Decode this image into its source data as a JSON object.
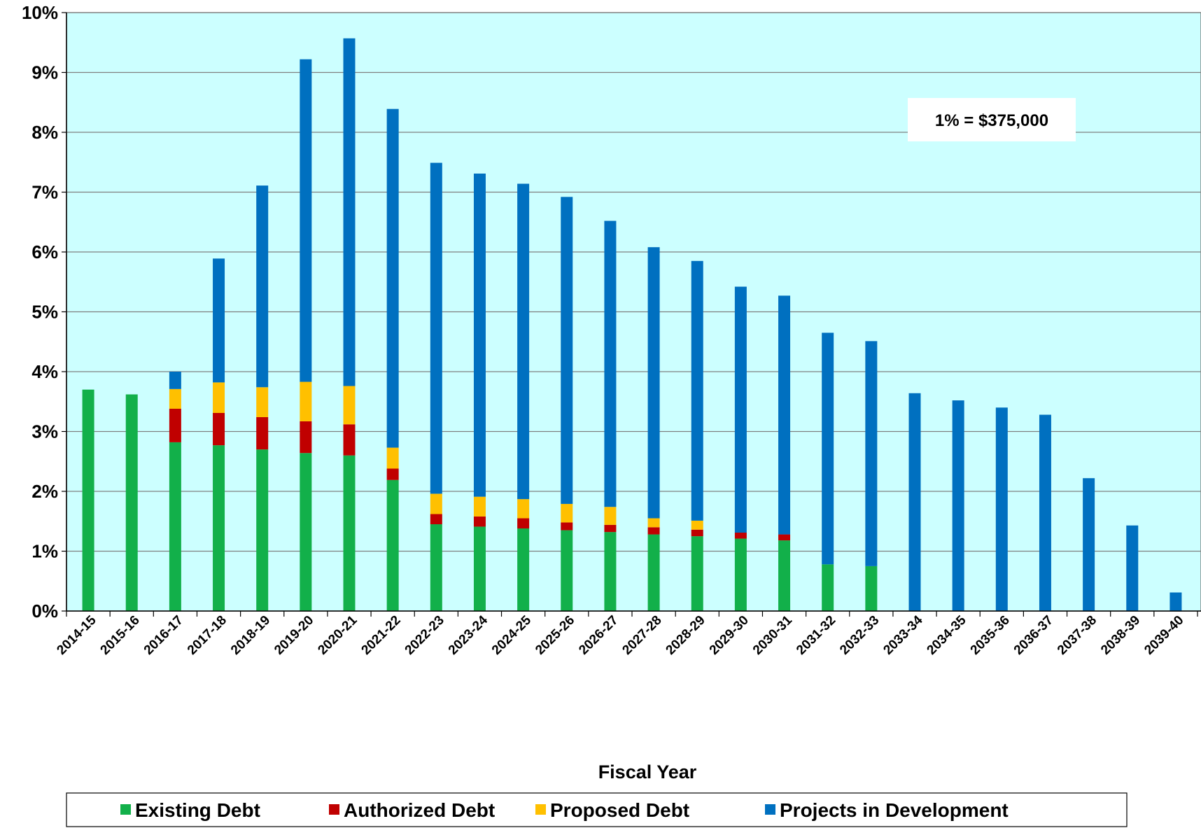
{
  "chart_data": {
    "type": "bar",
    "stacked": true,
    "title": "",
    "xlabel": "Fiscal Year",
    "ylabel": "",
    "ylim": [
      0,
      10
    ],
    "y_ticks": [
      "0%",
      "1%",
      "2%",
      "3%",
      "4%",
      "5%",
      "6%",
      "7%",
      "8%",
      "9%",
      "10%"
    ],
    "grid": true,
    "legend_position": "bottom",
    "annotation": "1% = $375,000",
    "categories": [
      "2014-15",
      "2015-16",
      "2016-17",
      "2017-18",
      "2018-19",
      "2019-20",
      "2020-21",
      "2021-22",
      "2022-23",
      "2023-24",
      "2024-25",
      "2025-26",
      "2026-27",
      "2027-28",
      "2028-29",
      "2029-30",
      "2030-31",
      "2031-32",
      "2032-33",
      "2033-34",
      "2034-35",
      "2035-36",
      "2036-37",
      "2037-38",
      "2038-39",
      "2039-40"
    ],
    "series": [
      {
        "name": "Existing Debt",
        "color": "#12B04A",
        "values": [
          3.7,
          3.62,
          2.82,
          2.77,
          2.7,
          2.64,
          2.6,
          2.19,
          1.45,
          1.41,
          1.38,
          1.35,
          1.32,
          1.28,
          1.25,
          1.21,
          1.18,
          0.78,
          0.75,
          0,
          0,
          0,
          0,
          0,
          0,
          0
        ]
      },
      {
        "name": "Authorized Debt",
        "color": "#C00000",
        "values": [
          0,
          0,
          0.56,
          0.54,
          0.54,
          0.53,
          0.52,
          0.19,
          0.17,
          0.17,
          0.17,
          0.13,
          0.12,
          0.12,
          0.11,
          0.1,
          0.1,
          0,
          0,
          0,
          0,
          0,
          0,
          0,
          0,
          0
        ]
      },
      {
        "name": "Proposed Debt",
        "color": "#FFC000",
        "values": [
          0,
          0,
          0.33,
          0.51,
          0.5,
          0.66,
          0.64,
          0.35,
          0.34,
          0.33,
          0.32,
          0.31,
          0.3,
          0.15,
          0.15,
          0,
          0,
          0,
          0,
          0,
          0,
          0,
          0,
          0,
          0,
          0
        ]
      },
      {
        "name": "Projects in Development",
        "color": "#0070C0",
        "values": [
          0,
          0,
          0.29,
          2.07,
          3.37,
          5.39,
          5.81,
          5.66,
          5.53,
          5.4,
          5.27,
          5.13,
          4.78,
          4.53,
          4.34,
          4.11,
          3.99,
          3.87,
          3.76,
          3.64,
          3.52,
          3.4,
          3.28,
          2.22,
          1.43,
          0.31
        ]
      }
    ]
  },
  "colors": {
    "plot_background": "#CCFFFF",
    "gridline": "#808080"
  }
}
